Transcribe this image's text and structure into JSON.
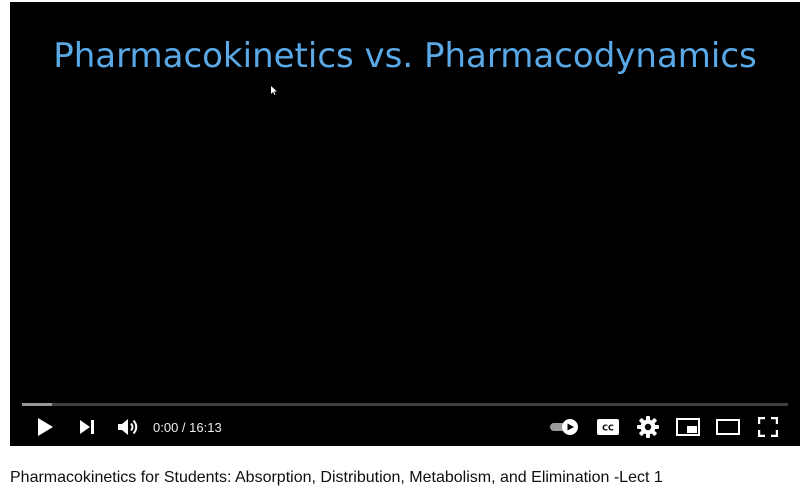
{
  "slide": {
    "title": "Pharmacokinetics vs. Pharmacodynamics",
    "title_color": "#5aa9e6"
  },
  "player": {
    "background": "#000000",
    "progress_fraction": 0,
    "time_display": "0:00 / 16:13",
    "controls": {
      "play": "play-icon",
      "next": "next-icon",
      "volume": "volume-icon",
      "autoplay": "autoplay-toggle-icon",
      "captions": "cc-icon",
      "settings": "gear-icon",
      "miniplayer": "miniplayer-icon",
      "theater": "theater-mode-icon",
      "fullscreen": "fullscreen-icon"
    }
  },
  "video": {
    "title": "Pharmacokinetics for Students: Absorption, Distribution, Metabolism, and Elimination -Lect 1"
  }
}
